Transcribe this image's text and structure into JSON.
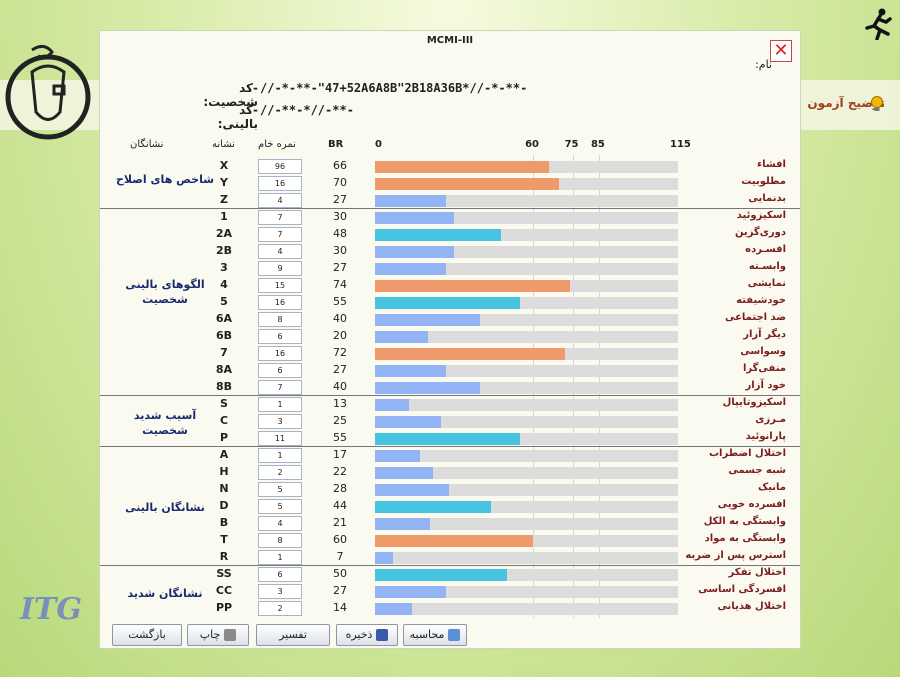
{
  "app": {
    "help_label": "توضیح آزمون"
  },
  "dialog": {
    "title": "MCMI-III",
    "close_icon": "close-icon",
    "name_label": "نام:",
    "personal_code_label": "-کد شخصیت:",
    "personal_code_value": "//-*-**-\"47+52A6A8B\"2B18A36B*//-*-**-",
    "clinical_code_label": "-کد بالینی:",
    "clinical_code_value": "//-**-*//-**-"
  },
  "table_headers": {
    "groups": "نشانگان",
    "code": "نشانه",
    "raw": "نمره خام",
    "br": "BR"
  },
  "scale_ticks": [
    "0",
    "60",
    "75",
    "85",
    "115"
  ],
  "colors": {
    "high": "#ef9a6a",
    "moderate": "#46c4e0",
    "low": "#93b4f4",
    "track": "#dcdcdc"
  },
  "groups": [
    {
      "label": "شاخص های اصلاح"
    },
    {
      "label": "الگوهای بالینی شخصیت"
    },
    {
      "label": "آسیب شدید شخصیت"
    },
    {
      "label": "نشانگان بالینی"
    },
    {
      "label": "نشانگان شدید"
    }
  ],
  "rows": [
    {
      "code": "X",
      "raw": "96",
      "br": "66",
      "name": "افشاء"
    },
    {
      "code": "Y",
      "raw": "16",
      "br": "70",
      "name": "مطلوبیت"
    },
    {
      "code": "Z",
      "raw": "4",
      "br": "27",
      "name": "بدنمایی"
    },
    {
      "code": "1",
      "raw": "7",
      "br": "30",
      "name": "اسکیزوئید"
    },
    {
      "code": "2A",
      "raw": "7",
      "br": "48",
      "name": "دوری‌گزین"
    },
    {
      "code": "2B",
      "raw": "4",
      "br": "30",
      "name": "افسـرده"
    },
    {
      "code": "3",
      "raw": "9",
      "br": "27",
      "name": "وابسـته"
    },
    {
      "code": "4",
      "raw": "15",
      "br": "74",
      "name": "نمایشی"
    },
    {
      "code": "5",
      "raw": "16",
      "br": "55",
      "name": "خودشیفته"
    },
    {
      "code": "6A",
      "raw": "8",
      "br": "40",
      "name": "ضد اجتماعی"
    },
    {
      "code": "6B",
      "raw": "6",
      "br": "20",
      "name": "دیگر آزار"
    },
    {
      "code": "7",
      "raw": "16",
      "br": "72",
      "name": "وسواسی"
    },
    {
      "code": "8A",
      "raw": "6",
      "br": "27",
      "name": "منفی‌گرا"
    },
    {
      "code": "8B",
      "raw": "7",
      "br": "40",
      "name": "خود آزار"
    },
    {
      "code": "S",
      "raw": "1",
      "br": "13",
      "name": "اسکیزوتایپال"
    },
    {
      "code": "C",
      "raw": "3",
      "br": "25",
      "name": "مـرزی"
    },
    {
      "code": "P",
      "raw": "11",
      "br": "55",
      "name": "پارانوئید"
    },
    {
      "code": "A",
      "raw": "1",
      "br": "17",
      "name": "اختلال اضطراب"
    },
    {
      "code": "H",
      "raw": "2",
      "br": "22",
      "name": "شبه جسمی"
    },
    {
      "code": "N",
      "raw": "5",
      "br": "28",
      "name": "مانیک"
    },
    {
      "code": "D",
      "raw": "5",
      "br": "44",
      "name": "افسرده خویی"
    },
    {
      "code": "B",
      "raw": "4",
      "br": "21",
      "name": "وابستگی به الکل"
    },
    {
      "code": "T",
      "raw": "8",
      "br": "60",
      "name": "وابستگی به مواد"
    },
    {
      "code": "R",
      "raw": "1",
      "br": "7",
      "name": "استرس پس از ضربه"
    },
    {
      "code": "SS",
      "raw": "6",
      "br": "50",
      "name": "اختلال تفکر"
    },
    {
      "code": "CC",
      "raw": "3",
      "br": "27",
      "name": "افسردگی اساسی"
    },
    {
      "code": "PP",
      "raw": "2",
      "br": "14",
      "name": "اختلال هذیانی"
    }
  ],
  "buttons": {
    "back": "بازگشت",
    "print": "چاپ",
    "interpret": "تفسیر",
    "save": "ذخیره",
    "calculate": "محاسبه"
  }
}
